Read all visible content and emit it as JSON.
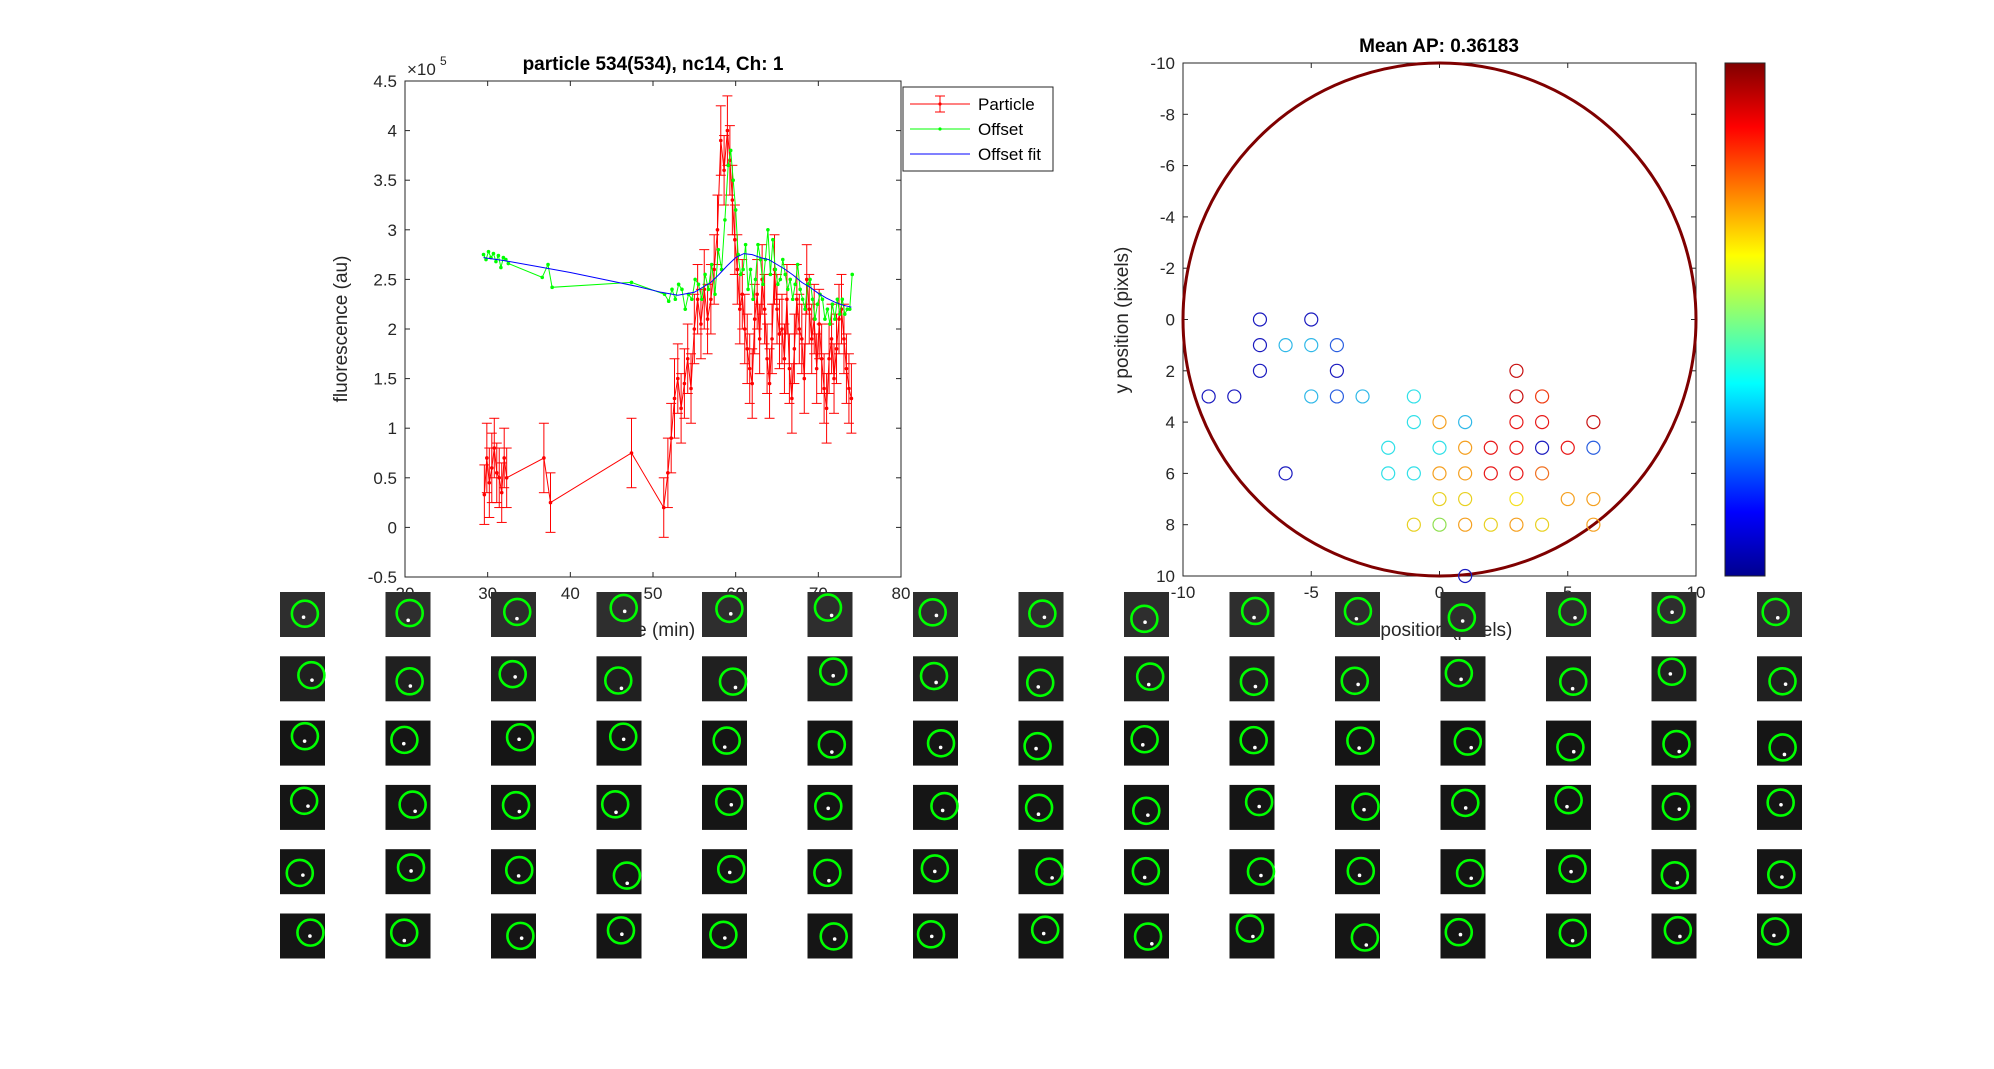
{
  "chart_data": [
    {
      "type": "line",
      "title": "particle 534(534), nc14, Ch: 1",
      "xlabel": "time (min)",
      "ylabel": "fluorescence (au)",
      "y_exponent_label": "×10",
      "y_exponent": "5",
      "xlim": [
        20,
        80
      ],
      "ylim": [
        -0.5,
        4.5
      ],
      "x_ticks": [
        "20",
        "30",
        "40",
        "50",
        "60",
        "70",
        "80"
      ],
      "y_ticks": [
        "-0.5",
        "0",
        "0.5",
        "1",
        "1.5",
        "2",
        "2.5",
        "3",
        "3.5",
        "4",
        "4.5"
      ],
      "legend": [
        "Particle",
        "Offset",
        "Offset fit"
      ],
      "legend_position": "top-right",
      "colors": {
        "particle": "#ff0000",
        "offset": "#00ff00",
        "offset_fit": "#0000ff"
      },
      "series": [
        {
          "name": "Particle",
          "x": [
            29.6,
            29.9,
            30.2,
            30.5,
            30.8,
            31.1,
            31.4,
            31.7,
            32.0,
            32.3,
            36.8,
            37.6,
            47.4,
            51.3,
            51.8,
            52.2,
            52.6,
            53.0,
            53.4,
            53.8,
            54.2,
            54.6,
            55.0,
            55.4,
            55.8,
            56.2,
            56.6,
            57.0,
            57.4,
            57.8,
            58.2,
            58.6,
            59.0,
            59.3,
            59.6,
            59.9,
            60.2,
            60.5,
            60.8,
            61.1,
            61.4,
            61.7,
            62.0,
            62.3,
            62.6,
            62.9,
            63.2,
            63.5,
            63.8,
            64.1,
            64.4,
            64.7,
            65.0,
            65.3,
            65.6,
            65.9,
            66.2,
            66.5,
            66.8,
            67.1,
            67.4,
            67.7,
            68.0,
            68.3,
            68.6,
            68.9,
            69.2,
            69.5,
            69.8,
            70.1,
            70.4,
            70.7,
            71.0,
            71.3,
            71.6,
            71.9,
            72.2,
            72.5,
            72.8,
            73.1,
            73.4,
            73.7,
            74.0
          ],
          "y": [
            0.33,
            0.7,
            0.45,
            0.6,
            0.8,
            0.55,
            0.5,
            0.35,
            0.7,
            0.5,
            0.7,
            0.25,
            0.75,
            0.2,
            0.55,
            0.9,
            1.3,
            1.5,
            1.2,
            1.45,
            1.7,
            1.4,
            2.0,
            2.3,
            2.05,
            2.4,
            2.1,
            2.3,
            2.6,
            3.0,
            3.9,
            3.6,
            4.0,
            3.7,
            3.3,
            2.9,
            2.6,
            2.2,
            2.35,
            2.0,
            1.8,
            1.6,
            1.45,
            2.1,
            2.35,
            1.9,
            2.5,
            2.2,
            1.7,
            1.45,
            1.9,
            2.6,
            2.2,
            1.95,
            2.0,
            1.7,
            2.3,
            1.6,
            1.3,
            1.8,
            2.3,
            2.0,
            1.9,
            1.5,
            2.5,
            2.2,
            1.9,
            2.1,
            1.6,
            2.05,
            1.7,
            1.4,
            1.2,
            1.7,
            1.9,
            1.5,
            1.8,
            2.1,
            2.2,
            1.9,
            1.6,
            1.4,
            1.3
          ],
          "error": [
            0.3,
            0.35,
            0.35,
            0.35,
            0.3,
            0.3,
            0.3,
            0.3,
            0.3,
            0.3,
            0.35,
            0.3,
            0.35,
            0.3,
            0.35,
            0.35,
            0.4,
            0.35,
            0.35,
            0.35,
            0.35,
            0.35,
            0.35,
            0.35,
            0.35,
            0.4,
            0.35,
            0.35,
            0.35,
            0.35,
            0.35,
            0.35,
            0.35,
            0.35,
            0.35,
            0.35,
            0.35,
            0.35,
            0.35,
            0.35,
            0.35,
            0.35,
            0.35,
            0.35,
            0.35,
            0.35,
            0.35,
            0.35,
            0.35,
            0.35,
            0.35,
            0.35,
            0.35,
            0.35,
            0.35,
            0.35,
            0.35,
            0.35,
            0.35,
            0.35,
            0.35,
            0.35,
            0.35,
            0.35,
            0.35,
            0.35,
            0.35,
            0.35,
            0.35,
            0.35,
            0.35,
            0.35,
            0.35,
            0.35,
            0.35,
            0.35,
            0.35,
            0.35,
            0.35,
            0.35,
            0.35,
            0.35,
            0.35
          ]
        },
        {
          "name": "Offset",
          "x": [
            29.5,
            29.8,
            30.1,
            30.4,
            30.7,
            31.0,
            31.3,
            31.6,
            31.9,
            32.2,
            32.5,
            36.6,
            37.3,
            37.8,
            47.4,
            51.4,
            51.9,
            52.3,
            52.7,
            53.1,
            53.5,
            53.9,
            54.3,
            54.7,
            55.1,
            55.5,
            55.9,
            56.3,
            56.7,
            57.1,
            57.5,
            57.9,
            58.3,
            58.7,
            59.1,
            59.4,
            59.7,
            60.0,
            60.3,
            60.6,
            60.9,
            61.2,
            61.5,
            61.8,
            62.1,
            62.4,
            62.7,
            63.0,
            63.3,
            63.6,
            63.9,
            64.2,
            64.5,
            64.8,
            65.1,
            65.4,
            65.7,
            66.0,
            66.3,
            66.6,
            66.9,
            67.2,
            67.5,
            67.8,
            68.1,
            68.4,
            68.7,
            69.0,
            69.3,
            69.6,
            69.9,
            70.2,
            70.5,
            70.8,
            71.1,
            71.4,
            71.7,
            72.0,
            72.3,
            72.6,
            72.9,
            73.2,
            73.5,
            73.8,
            74.1
          ],
          "y": [
            2.75,
            2.7,
            2.78,
            2.72,
            2.76,
            2.68,
            2.74,
            2.62,
            2.72,
            2.7,
            2.66,
            2.52,
            2.65,
            2.42,
            2.47,
            2.35,
            2.28,
            2.4,
            2.3,
            2.45,
            2.4,
            2.2,
            2.35,
            2.3,
            2.5,
            2.45,
            2.3,
            2.55,
            2.4,
            2.65,
            2.35,
            2.8,
            2.6,
            3.1,
            3.65,
            3.8,
            3.5,
            3.2,
            2.75,
            2.55,
            2.6,
            2.85,
            2.4,
            2.6,
            2.3,
            2.5,
            2.85,
            2.7,
            2.45,
            2.7,
            3.0,
            2.55,
            2.9,
            2.6,
            2.45,
            2.5,
            2.7,
            2.55,
            2.4,
            2.5,
            2.3,
            2.45,
            2.65,
            2.4,
            2.3,
            2.2,
            2.45,
            2.5,
            2.3,
            2.1,
            2.25,
            2.35,
            2.3,
            2.1,
            2.2,
            2.05,
            2.25,
            2.1,
            2.3,
            2.15,
            2.3,
            2.15,
            2.2,
            2.2,
            2.55
          ]
        },
        {
          "name": "Offset fit",
          "x": [
            29.5,
            32,
            36,
            40,
            44,
            48,
            51,
            53,
            55,
            57,
            58,
            59,
            60,
            61,
            62,
            63,
            64,
            65,
            66,
            67,
            68,
            69,
            70,
            71,
            72,
            73,
            74
          ],
          "y": [
            2.72,
            2.69,
            2.63,
            2.57,
            2.5,
            2.43,
            2.37,
            2.34,
            2.37,
            2.47,
            2.55,
            2.64,
            2.72,
            2.76,
            2.75,
            2.72,
            2.7,
            2.65,
            2.6,
            2.54,
            2.47,
            2.42,
            2.36,
            2.31,
            2.27,
            2.24,
            2.22
          ]
        }
      ]
    },
    {
      "type": "scatter",
      "title": "Mean AP: 0.36183",
      "xlabel": "x position (pixels)",
      "ylabel": "y position (pixels)",
      "xlim": [
        -10,
        10
      ],
      "ylim": [
        -10,
        10
      ],
      "y_reversed": true,
      "x_ticks": [
        "-10",
        "-5",
        "0",
        "5",
        "10"
      ],
      "y_ticks": [
        "-10",
        "-8",
        "-6",
        "-4",
        "-2",
        "0",
        "2",
        "4",
        "6",
        "8",
        "10"
      ],
      "boundary_circle": {
        "center": [
          0,
          0
        ],
        "radius": 10,
        "color": "#7f0000"
      },
      "colormap": "jet",
      "colorbar_position": "right",
      "points": [
        {
          "x": -7,
          "y": 0,
          "c": "#1a1abf"
        },
        {
          "x": -5,
          "y": 0,
          "c": "#1a1abf"
        },
        {
          "x": -7,
          "y": 1,
          "c": "#1a1abf"
        },
        {
          "x": -6,
          "y": 1,
          "c": "#2fb8e8"
        },
        {
          "x": -5,
          "y": 1,
          "c": "#2fb8e8"
        },
        {
          "x": -4,
          "y": 1,
          "c": "#2a5fe0"
        },
        {
          "x": -7,
          "y": 2,
          "c": "#1a1abf"
        },
        {
          "x": -4,
          "y": 2,
          "c": "#1a1abf"
        },
        {
          "x": 3,
          "y": 2,
          "c": "#c81010"
        },
        {
          "x": -9,
          "y": 3,
          "c": "#1a1abf"
        },
        {
          "x": -8,
          "y": 3,
          "c": "#1a1abf"
        },
        {
          "x": -5,
          "y": 3,
          "c": "#2fb8e8"
        },
        {
          "x": -4,
          "y": 3,
          "c": "#2a5fe0"
        },
        {
          "x": -3,
          "y": 3,
          "c": "#2fb8e8"
        },
        {
          "x": -1,
          "y": 3,
          "c": "#30e0e8"
        },
        {
          "x": 3,
          "y": 3,
          "c": "#c81010"
        },
        {
          "x": 4,
          "y": 3,
          "c": "#f03a10"
        },
        {
          "x": -1,
          "y": 4,
          "c": "#30e0e8"
        },
        {
          "x": 0,
          "y": 4,
          "c": "#f5a020"
        },
        {
          "x": 1,
          "y": 4,
          "c": "#2fb8e8"
        },
        {
          "x": 3,
          "y": 4,
          "c": "#e81818"
        },
        {
          "x": 4,
          "y": 4,
          "c": "#e81818"
        },
        {
          "x": 6,
          "y": 4,
          "c": "#c81010"
        },
        {
          "x": -2,
          "y": 5,
          "c": "#30e0e8"
        },
        {
          "x": 0,
          "y": 5,
          "c": "#30e0e8"
        },
        {
          "x": 1,
          "y": 5,
          "c": "#f5a020"
        },
        {
          "x": 2,
          "y": 5,
          "c": "#e81818"
        },
        {
          "x": 3,
          "y": 5,
          "c": "#e81818"
        },
        {
          "x": 4,
          "y": 5,
          "c": "#1a1abf"
        },
        {
          "x": 5,
          "y": 5,
          "c": "#e81818"
        },
        {
          "x": 6,
          "y": 5,
          "c": "#2a5fe0"
        },
        {
          "x": -6,
          "y": 6,
          "c": "#1a1abf"
        },
        {
          "x": -2,
          "y": 6,
          "c": "#30e0e8"
        },
        {
          "x": -1,
          "y": 6,
          "c": "#30e0e8"
        },
        {
          "x": 0,
          "y": 6,
          "c": "#f5a020"
        },
        {
          "x": 1,
          "y": 6,
          "c": "#f5a020"
        },
        {
          "x": 2,
          "y": 6,
          "c": "#e81818"
        },
        {
          "x": 3,
          "y": 6,
          "c": "#e81818"
        },
        {
          "x": 4,
          "y": 6,
          "c": "#f07020"
        },
        {
          "x": 0,
          "y": 7,
          "c": "#e8d020"
        },
        {
          "x": 1,
          "y": 7,
          "c": "#e8d020"
        },
        {
          "x": 3,
          "y": 7,
          "c": "#f5e020"
        },
        {
          "x": 5,
          "y": 7,
          "c": "#f5a020"
        },
        {
          "x": 6,
          "y": 7,
          "c": "#f5a020"
        },
        {
          "x": -1,
          "y": 8,
          "c": "#e8d020"
        },
        {
          "x": 0,
          "y": 8,
          "c": "#90e050"
        },
        {
          "x": 1,
          "y": 8,
          "c": "#f5a020"
        },
        {
          "x": 2,
          "y": 8,
          "c": "#e8d020"
        },
        {
          "x": 3,
          "y": 8,
          "c": "#f5a020"
        },
        {
          "x": 4,
          "y": 8,
          "c": "#e8d020"
        },
        {
          "x": 6,
          "y": 8,
          "c": "#f5a020"
        },
        {
          "x": 1,
          "y": 10,
          "c": "#1a1abf"
        }
      ]
    }
  ],
  "thumbnails": {
    "rows": 6,
    "cols": 15,
    "circle_color": "#00ff00",
    "frame_color": "#151515"
  }
}
